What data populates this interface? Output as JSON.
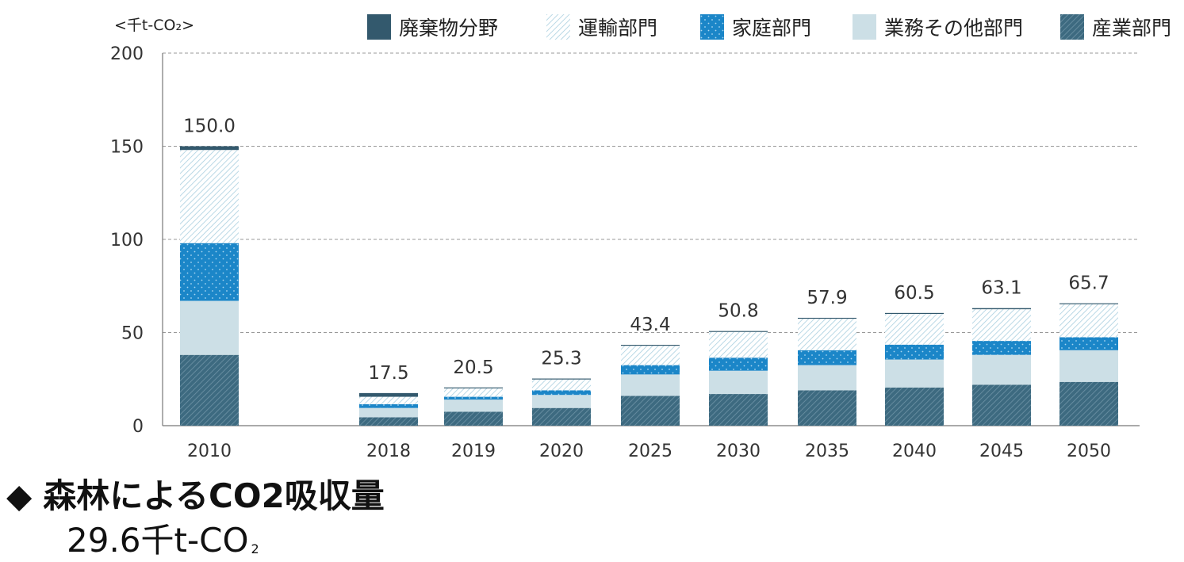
{
  "chart_data": {
    "type": "bar",
    "stacked": true,
    "unit_label": "<千t-CO₂>",
    "categories": [
      "2010",
      "2018",
      "2019",
      "2020",
      "2025",
      "2030",
      "2035",
      "2040",
      "2045",
      "2050"
    ],
    "totals": [
      "150.0",
      "17.5",
      "20.5",
      "25.3",
      "43.4",
      "50.8",
      "57.9",
      "60.5",
      "63.1",
      "65.7"
    ],
    "ylim": [
      0,
      200
    ],
    "yticks": [
      0,
      50,
      100,
      150,
      200
    ],
    "grid": true,
    "legend_position": "top",
    "series": [
      {
        "name": "産業部門",
        "pattern": "diag-dark",
        "color": "#3d6a80",
        "values": [
          38,
          4.5,
          7.5,
          9.5,
          16,
          17,
          19,
          20.5,
          22,
          23.5
        ]
      },
      {
        "name": "業務その他部門",
        "pattern": "solid-light",
        "color": "#ccdfe6",
        "values": [
          29,
          5,
          6.5,
          7,
          11.5,
          12.5,
          13.5,
          15,
          16,
          17
        ]
      },
      {
        "name": "家庭部門",
        "pattern": "dots",
        "color": "#1b86c8",
        "values": [
          31,
          2,
          1.5,
          2.5,
          5,
          7,
          8,
          8,
          7.5,
          7
        ]
      },
      {
        "name": "運輸部門",
        "pattern": "diag-light",
        "color": "#bcdce8",
        "values": [
          50,
          4,
          4.5,
          5.8,
          10.4,
          13.8,
          16.9,
          16.5,
          17,
          17.7
        ]
      },
      {
        "name": "廃棄物分野",
        "pattern": "solid-dark",
        "color": "#33596d",
        "values": [
          2,
          2,
          0.5,
          0.5,
          0.5,
          0.5,
          0.5,
          0.5,
          0.6,
          0.5
        ]
      }
    ],
    "legend_order": [
      "廃棄物分野",
      "運輸部門",
      "家庭部門",
      "業務その他部門",
      "産業部門"
    ]
  },
  "note": {
    "marker": "◆",
    "title": "森林によるCO2吸収量",
    "value": "29.6千t-CO",
    "value_sub": "2"
  }
}
